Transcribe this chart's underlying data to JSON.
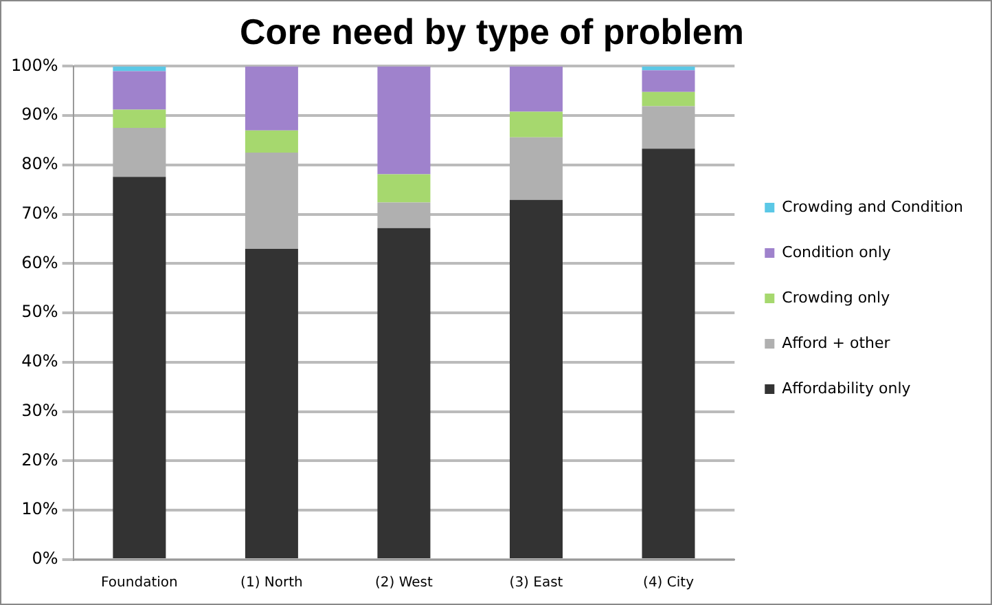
{
  "chart_data": {
    "type": "bar",
    "title": "Core need by type of problem",
    "stacked": true,
    "categories": [
      "Foundation",
      "(1) North",
      "(2) West",
      "(3) East",
      "(4) City"
    ],
    "series": [
      {
        "name": "Affordability only",
        "color": "#333333",
        "values": [
          77.6,
          63,
          67.2,
          72.9,
          83.3
        ]
      },
      {
        "name": "Afford + other",
        "color": "#b0b0b0",
        "values": [
          9.9,
          19.5,
          5.2,
          12.7,
          8.6
        ]
      },
      {
        "name": "Crowding only",
        "color": "#a6d86e",
        "values": [
          3.7,
          4.5,
          5.7,
          5.2,
          2.9
        ]
      },
      {
        "name": "Condition only",
        "color": "#9f82cc",
        "values": [
          7.8,
          13,
          21.9,
          9.2,
          4.4
        ]
      },
      {
        "name": "Crowding and Condition",
        "color": "#5bc8e6",
        "values": [
          1,
          0,
          0,
          0,
          0.8
        ]
      }
    ],
    "ylim": [
      0,
      100
    ],
    "yticks": [
      {
        "value": 0,
        "label": "0%"
      },
      {
        "value": 10,
        "label": "10%"
      },
      {
        "value": 20,
        "label": "20%"
      },
      {
        "value": 30,
        "label": "30%"
      },
      {
        "value": 40,
        "label": "40%"
      },
      {
        "value": 50,
        "label": "50%"
      },
      {
        "value": 60,
        "label": "60%"
      },
      {
        "value": 70,
        "label": "70%"
      },
      {
        "value": 80,
        "label": "80%"
      },
      {
        "value": 90,
        "label": "90%"
      },
      {
        "value": 100,
        "label": "100%"
      }
    ],
    "grid": "y",
    "legend": "right"
  }
}
